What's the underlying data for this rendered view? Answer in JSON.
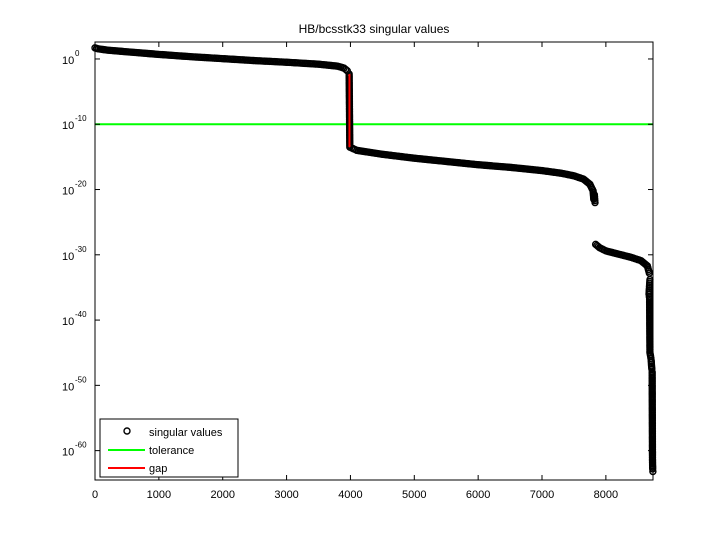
{
  "chart_data": {
    "type": "scatter",
    "title": "HB/bcsstk33 singular values",
    "xlabel": "",
    "ylabel": "",
    "y_scale": "log",
    "xlim": [
      0,
      8738
    ],
    "ylim_log10": [
      -64.5,
      2.6
    ],
    "x_ticks": [
      0,
      1000,
      2000,
      3000,
      4000,
      5000,
      6000,
      7000,
      8000
    ],
    "x_tick_labels": [
      "0",
      "1000",
      "2000",
      "3000",
      "4000",
      "5000",
      "6000",
      "7000",
      "8000"
    ],
    "y_ticks_log10": [
      0,
      -10,
      -20,
      -30,
      -40,
      -50,
      -60
    ],
    "y_tick_bases": [
      "10",
      "10",
      "10",
      "10",
      "10",
      "10",
      "10"
    ],
    "y_tick_exponents": [
      "0",
      "-10",
      "-20",
      "-30",
      "-40",
      "-50",
      "-60"
    ],
    "grid": false,
    "legend_position": "bottom-left",
    "series": [
      {
        "name": "singular values",
        "marker": "circle",
        "color": "#000000",
        "points_log10": [
          [
            0,
            1.7
          ],
          [
            50,
            1.55
          ],
          [
            200,
            1.35
          ],
          [
            500,
            1.1
          ],
          [
            1000,
            0.7
          ],
          [
            1500,
            0.35
          ],
          [
            2000,
            0.05
          ],
          [
            2500,
            -0.25
          ],
          [
            3000,
            -0.5
          ],
          [
            3500,
            -0.8
          ],
          [
            3800,
            -1.1
          ],
          [
            3900,
            -1.4
          ],
          [
            3950,
            -1.8
          ],
          [
            3980,
            -2.3
          ],
          [
            3990,
            -13.5
          ],
          [
            4100,
            -14.0
          ],
          [
            4500,
            -14.6
          ],
          [
            5000,
            -15.2
          ],
          [
            5500,
            -15.7
          ],
          [
            6000,
            -16.2
          ],
          [
            6500,
            -16.6
          ],
          [
            7000,
            -17.1
          ],
          [
            7300,
            -17.5
          ],
          [
            7500,
            -17.9
          ],
          [
            7650,
            -18.4
          ],
          [
            7750,
            -19.2
          ],
          [
            7800,
            -20.2
          ],
          [
            7810,
            -21.5
          ],
          [
            7820,
            -20.8
          ],
          [
            7830,
            -22.0
          ],
          [
            7840,
            -28.4
          ],
          [
            7900,
            -28.9
          ],
          [
            8000,
            -29.4
          ],
          [
            8200,
            -29.9
          ],
          [
            8400,
            -30.4
          ],
          [
            8550,
            -30.9
          ],
          [
            8650,
            -31.7
          ],
          [
            8680,
            -32.8
          ],
          [
            8690,
            -33.8
          ],
          [
            8675,
            -36.0
          ],
          [
            8680,
            -36.4
          ],
          [
            8685,
            -36.6
          ],
          [
            8690,
            -45.0
          ],
          [
            8700,
            -45.5
          ],
          [
            8710,
            -46.2
          ],
          [
            8715,
            -47.0
          ],
          [
            8720,
            -47.5
          ],
          [
            8725,
            -48.0
          ],
          [
            8730,
            -61.3
          ],
          [
            8733,
            -62.8
          ],
          [
            8736,
            -63.2
          ]
        ]
      },
      {
        "name": "tolerance",
        "color": "#00ff00",
        "y_log10": -10
      },
      {
        "name": "gap",
        "color": "#ff0000",
        "x": 3985,
        "y_from_log10": -2.3,
        "y_to_log10": -13.5
      }
    ]
  }
}
